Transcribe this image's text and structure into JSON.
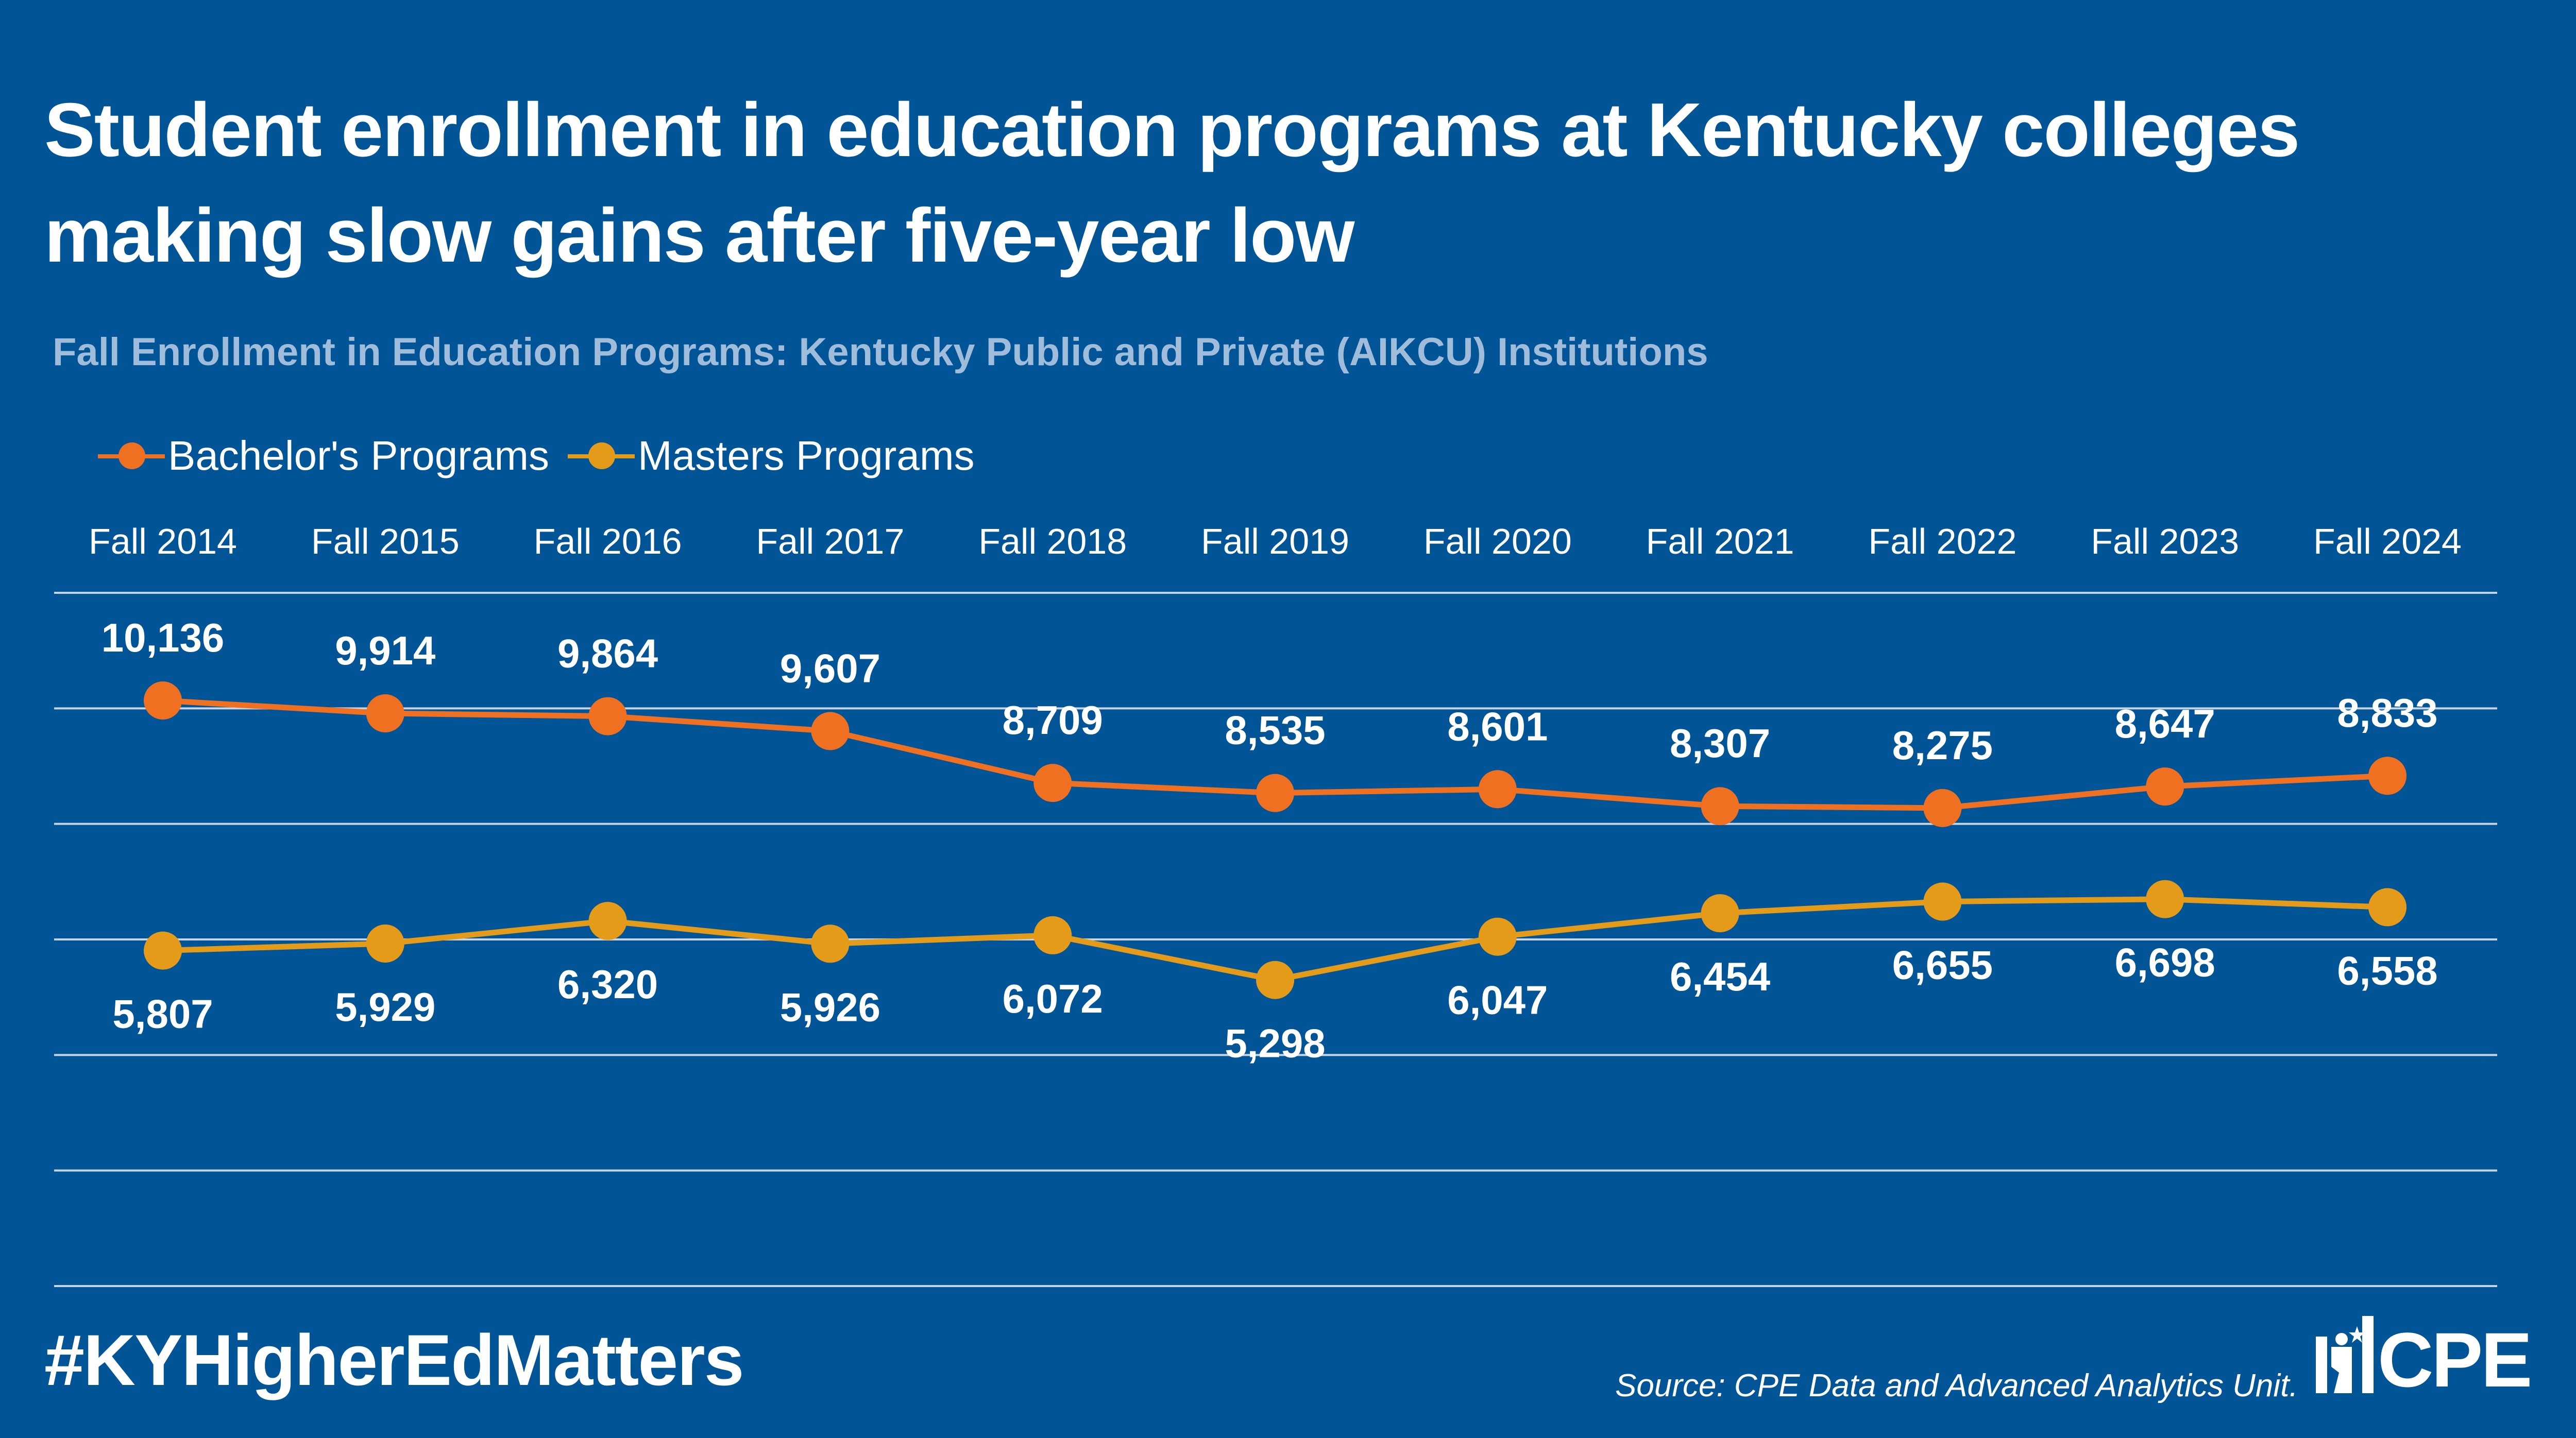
{
  "header": {
    "title_line1": "Student enrollment in education programs at Kentucky colleges",
    "title_line2": "making slow gains after five-year low",
    "subtitle": "Fall Enrollment in Education Programs: Kentucky Public and Private (AIKCU) Institutions"
  },
  "colors": {
    "background": "#015496",
    "bachelors": "#f07022",
    "masters": "#e39b19",
    "gridline": "#c8d4e2",
    "text": "#ffffff",
    "subtitle": "#9fbcdb"
  },
  "chart_data": {
    "type": "line",
    "title": "Fall Enrollment in Education Programs: Kentucky Public and Private (AIKCU) Institutions",
    "xlabel": "",
    "ylabel": "",
    "categories": [
      "Fall 2014",
      "Fall 2015",
      "Fall 2016",
      "Fall 2017",
      "Fall 2018",
      "Fall 2019",
      "Fall 2020",
      "Fall 2021",
      "Fall 2022",
      "Fall 2023",
      "Fall 2024"
    ],
    "series": [
      {
        "name": "Bachelor's Programs",
        "color": "#f07022",
        "values": [
          10136,
          9914,
          9864,
          9607,
          8709,
          8535,
          8601,
          8307,
          8275,
          8647,
          8833
        ],
        "labels": [
          "10,136",
          "9,914",
          "9,864",
          "9,607",
          "8,709",
          "8,535",
          "8,601",
          "8,307",
          "8,275",
          "8,647",
          "8,833"
        ],
        "label_position": "above"
      },
      {
        "name": "Masters Programs",
        "color": "#e39b19",
        "values": [
          5807,
          5929,
          6320,
          5926,
          6072,
          5298,
          6047,
          6454,
          6655,
          6698,
          6558
        ],
        "labels": [
          "5,807",
          "5,929",
          "6,320",
          "5,926",
          "6,072",
          "5,298",
          "6,047",
          "6,454",
          "6,655",
          "6,698",
          "6,558"
        ],
        "label_position": "below"
      }
    ],
    "ylim": [
      0,
      12000
    ],
    "yticks": [
      0,
      2000,
      4000,
      6000,
      8000,
      10000,
      12000
    ],
    "y_tick_labels_shown": false,
    "grid": true,
    "x_axis_position": "top",
    "legend_position": "top-left"
  },
  "footer": {
    "hashtag": "#KYHigherEdMatters",
    "source": "Source: CPE Data and Advanced Analytics Unit.",
    "logo_text": "CPE"
  }
}
